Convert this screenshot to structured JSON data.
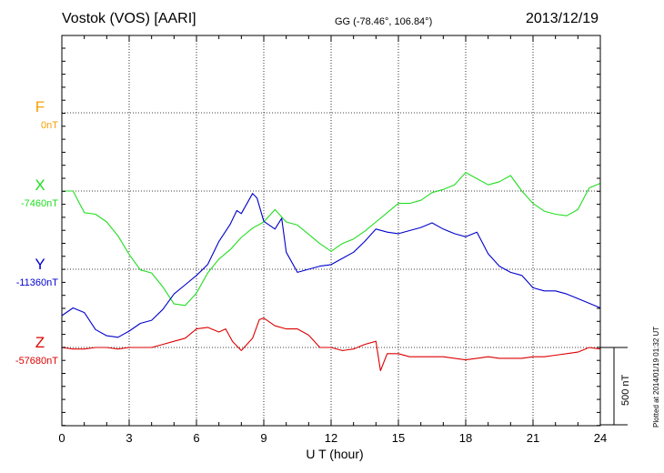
{
  "header": {
    "station": "Vostok (VOS)  [AARI]",
    "coords": "GG (-78.46°, 106.84°)",
    "date": "2013/12/19"
  },
  "components": [
    {
      "name": "F",
      "baseline": "0nT",
      "color": "#f5a000"
    },
    {
      "name": "X",
      "baseline": "-7460nT",
      "color": "#22dd22"
    },
    {
      "name": "Y",
      "baseline": "-11360nT",
      "color": "#0000cc"
    },
    {
      "name": "Z",
      "baseline": "-57680nT",
      "color": "#dd0000"
    }
  ],
  "scale_bar": {
    "label": "500 nT"
  },
  "footer": {
    "plotted": "Plotted at 2014/01/19 01:32 UT"
  },
  "chart_data": {
    "type": "line",
    "title": "Vostok (VOS)  [AARI]",
    "xlabel": "U T (hour)",
    "xlim": [
      0,
      24
    ],
    "xticks": [
      "0",
      "3",
      "6",
      "9",
      "12",
      "15",
      "18",
      "21",
      "24"
    ],
    "grid": true,
    "series": [
      {
        "name": "X",
        "color": "#22dd22",
        "x": [
          0,
          0.5,
          1,
          1.5,
          2,
          2.5,
          3,
          3.5,
          4,
          4.5,
          5,
          5.5,
          6,
          6.5,
          7,
          7.5,
          8,
          8.5,
          9,
          9.5,
          10,
          10.5,
          11,
          11.5,
          12,
          12.5,
          13,
          13.5,
          14,
          14.5,
          15,
          15.5,
          16,
          16.5,
          17,
          17.5,
          18,
          18.5,
          19,
          19.5,
          20,
          20.5,
          21,
          21.5,
          22,
          22.5,
          23,
          23.5,
          24
        ],
        "y": [
          -7460,
          -7460,
          -7600,
          -7610,
          -7660,
          -7750,
          -7870,
          -7970,
          -7990,
          -8080,
          -8190,
          -8200,
          -8120,
          -7990,
          -7900,
          -7840,
          -7760,
          -7700,
          -7660,
          -7580,
          -7660,
          -7680,
          -7740,
          -7800,
          -7850,
          -7800,
          -7770,
          -7720,
          -7660,
          -7600,
          -7540,
          -7540,
          -7520,
          -7470,
          -7450,
          -7420,
          -7340,
          -7380,
          -7420,
          -7400,
          -7360,
          -7460,
          -7540,
          -7590,
          -7610,
          -7620,
          -7580,
          -7440,
          -7410
        ]
      },
      {
        "name": "Y",
        "color": "#0000cc",
        "x": [
          0,
          0.5,
          1,
          1.5,
          2,
          2.5,
          3,
          3.5,
          4,
          4.5,
          5,
          5.5,
          6,
          6.5,
          7,
          7.5,
          7.8,
          8,
          8.5,
          8.7,
          9,
          9.5,
          9.8,
          10,
          10.5,
          11,
          11.5,
          12,
          12.5,
          13,
          13.5,
          14,
          14.5,
          15,
          15.5,
          16,
          16.5,
          17,
          17.5,
          18,
          18.5,
          19,
          19.5,
          20,
          20.5,
          21,
          21.5,
          22,
          22.5,
          23,
          23.5,
          24
        ],
        "y": [
          -11660,
          -11610,
          -11640,
          -11750,
          -11790,
          -11800,
          -11760,
          -11710,
          -11690,
          -11620,
          -11520,
          -11460,
          -11400,
          -11330,
          -11180,
          -11070,
          -10980,
          -11000,
          -10870,
          -10900,
          -11050,
          -11100,
          -11030,
          -11250,
          -11380,
          -11360,
          -11340,
          -11330,
          -11290,
          -11250,
          -11180,
          -11100,
          -11120,
          -11130,
          -11110,
          -11090,
          -11060,
          -11100,
          -11130,
          -11150,
          -11120,
          -11260,
          -11340,
          -11380,
          -11400,
          -11480,
          -11500,
          -11500,
          -11520,
          -11550,
          -11580,
          -11610
        ]
      },
      {
        "name": "Z",
        "color": "#dd0000",
        "x": [
          0,
          0.5,
          1,
          1.5,
          2,
          2.5,
          3,
          3.5,
          4,
          4.5,
          5,
          5.5,
          6,
          6.5,
          7,
          7.3,
          7.6,
          8,
          8.5,
          8.8,
          9,
          9.5,
          10,
          10.5,
          11,
          11.5,
          12,
          12.5,
          13,
          13.5,
          14,
          14.2,
          14.5,
          15,
          15.5,
          16,
          16.5,
          17,
          17.5,
          18,
          18.5,
          19,
          19.5,
          20,
          20.5,
          21,
          21.5,
          22,
          22.5,
          23,
          23.5,
          24
        ],
        "y": [
          -57680,
          -57690,
          -57690,
          -57680,
          -57680,
          -57690,
          -57680,
          -57680,
          -57680,
          -57660,
          -57640,
          -57620,
          -57560,
          -57550,
          -57580,
          -57560,
          -57640,
          -57700,
          -57620,
          -57500,
          -57490,
          -57540,
          -57560,
          -57560,
          -57600,
          -57680,
          -57680,
          -57700,
          -57690,
          -57660,
          -57640,
          -57830,
          -57720,
          -57720,
          -57740,
          -57740,
          -57740,
          -57740,
          -57750,
          -57760,
          -57750,
          -57740,
          -57750,
          -57750,
          -57750,
          -57740,
          -57740,
          -57730,
          -57720,
          -57710,
          -57680,
          -57690
        ]
      }
    ]
  }
}
